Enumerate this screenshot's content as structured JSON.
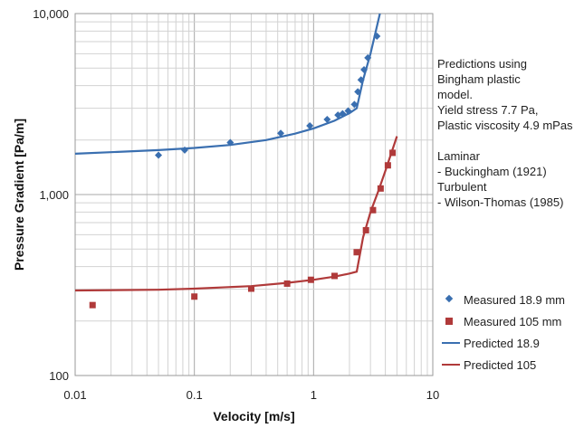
{
  "chart_data": {
    "type": "scatter",
    "title": "",
    "xlabel": "Velocity [m/s]",
    "ylabel": "Pressure Gradient  [Pa/m]",
    "xscale": "log",
    "yscale": "log",
    "xlim": [
      0.01,
      10
    ],
    "ylim": [
      100,
      10000
    ],
    "grid": true,
    "legend_position": "bottom-right",
    "x_ticks": [
      {
        "value": 0.01,
        "label": "0.01"
      },
      {
        "value": 0.1,
        "label": "0.1"
      },
      {
        "value": 1,
        "label": "1"
      },
      {
        "value": 10,
        "label": "10"
      }
    ],
    "y_ticks": [
      {
        "value": 100,
        "label": "100"
      },
      {
        "value": 1000,
        "label": "1,000"
      },
      {
        "value": 10000,
        "label": "10,000"
      }
    ],
    "series": [
      {
        "name": "Measured 18.9 mm",
        "kind": "marker",
        "marker": "diamond",
        "color": "#3a6fb0",
        "points": [
          [
            0.05,
            1650
          ],
          [
            0.083,
            1760
          ],
          [
            0.2,
            1940
          ],
          [
            0.53,
            2180
          ],
          [
            0.93,
            2400
          ],
          [
            1.3,
            2600
          ],
          [
            1.6,
            2750
          ],
          [
            1.75,
            2800
          ],
          [
            1.95,
            2900
          ],
          [
            2.2,
            3150
          ],
          [
            2.35,
            3700
          ],
          [
            2.5,
            4300
          ],
          [
            2.65,
            4900
          ],
          [
            2.85,
            5700
          ],
          [
            3.4,
            7500
          ]
        ]
      },
      {
        "name": "Measured 105 mm",
        "kind": "marker",
        "marker": "square",
        "color": "#b03a3a",
        "points": [
          [
            0.014,
            245
          ],
          [
            0.1,
            273
          ],
          [
            0.3,
            302
          ],
          [
            0.6,
            322
          ],
          [
            0.95,
            338
          ],
          [
            1.5,
            355
          ],
          [
            2.3,
            480
          ],
          [
            2.75,
            635
          ],
          [
            3.15,
            820
          ],
          [
            3.65,
            1080
          ],
          [
            4.2,
            1450
          ],
          [
            4.6,
            1700
          ]
        ]
      },
      {
        "name": "Predicted 18.9",
        "kind": "line",
        "color": "#3a6fb0",
        "points": [
          [
            0.01,
            1680
          ],
          [
            0.05,
            1760
          ],
          [
            0.1,
            1810
          ],
          [
            0.2,
            1880
          ],
          [
            0.4,
            2000
          ],
          [
            0.7,
            2170
          ],
          [
            1.0,
            2320
          ],
          [
            1.5,
            2560
          ],
          [
            2.0,
            2820
          ],
          [
            2.3,
            3000
          ],
          [
            2.6,
            4300
          ],
          [
            3.0,
            6000
          ],
          [
            3.6,
            10000
          ]
        ]
      },
      {
        "name": "Predicted 105",
        "kind": "line",
        "color": "#b03a3a",
        "points": [
          [
            0.01,
            295
          ],
          [
            0.05,
            298
          ],
          [
            0.1,
            302
          ],
          [
            0.3,
            312
          ],
          [
            0.6,
            325
          ],
          [
            1.0,
            338
          ],
          [
            1.5,
            352
          ],
          [
            2.0,
            366
          ],
          [
            2.3,
            375
          ],
          [
            2.6,
            580
          ],
          [
            3.0,
            800
          ],
          [
            3.5,
            1050
          ],
          [
            4.0,
            1350
          ],
          [
            4.5,
            1700
          ],
          [
            5.0,
            2100
          ]
        ]
      }
    ],
    "annotations": [
      "Predictions using",
      "Bingham plastic",
      "model.",
      "Yield stress 7.7 Pa,",
      "Plastic viscosity 4.9 mPas",
      "",
      "Laminar",
      " - Buckingham (1921)",
      "Turbulent",
      "- Wilson-Thomas (1985)"
    ]
  }
}
